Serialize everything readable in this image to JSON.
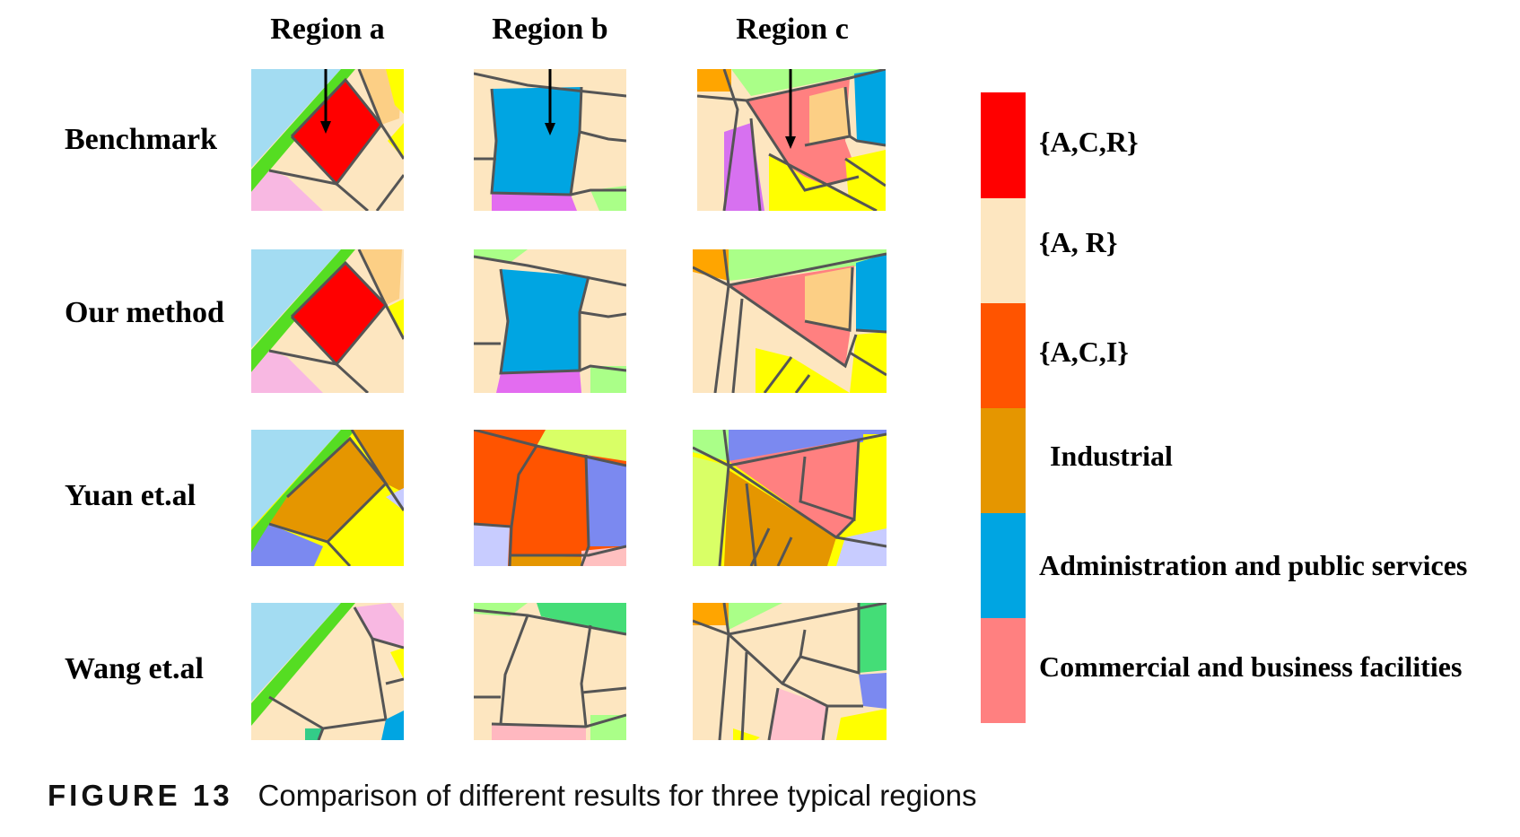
{
  "columns": [
    "Region a",
    "Region b",
    "Region c"
  ],
  "rows": [
    "Benchmark",
    "Our method",
    "Yuan et.al",
    "Wang et.al"
  ],
  "legend": [
    {
      "label": "{A,C,R}",
      "color": "#ff0000"
    },
    {
      "label": "{A, R}",
      "color": "#fde6c0"
    },
    {
      "label": "{A,C,I}",
      "color": "#ff5400"
    },
    {
      "label": "Industrial",
      "color": "#e59600"
    },
    {
      "label": "Administration and public services",
      "color": "#00a5e2"
    },
    {
      "label": "Commercial and business facilities",
      "color": "#ff8080"
    }
  ],
  "caption": {
    "figure_number": "FIGURE 13",
    "text": "Comparison of different results for three typical regions"
  }
}
